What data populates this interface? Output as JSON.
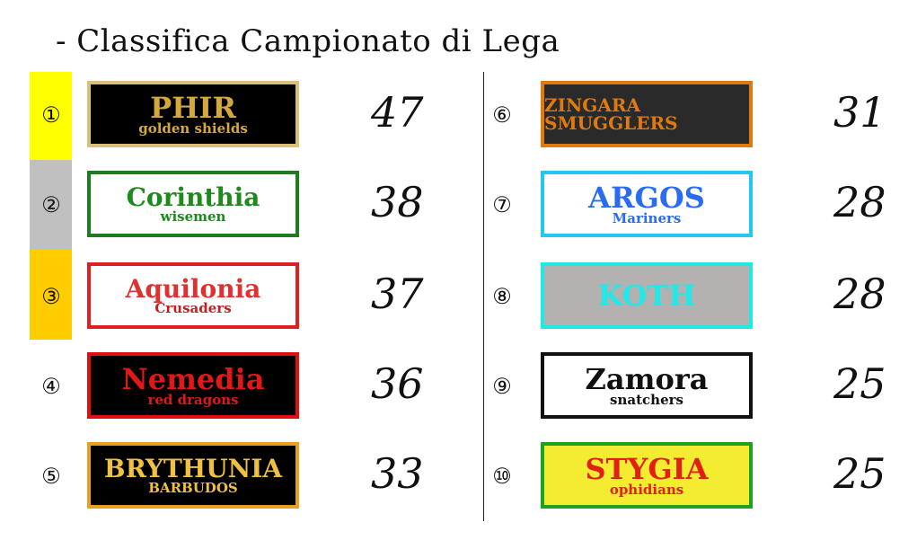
{
  "title": "- Classifica Campionato di Lega",
  "highlight_colors": [
    "#ffff00",
    "#c0c0c0",
    "#ffcc00"
  ],
  "teams": [
    {
      "rank": "①",
      "name": "PHIR",
      "sub": "golden shields",
      "score": "47",
      "bg": "#000000",
      "border": "#d9bf78",
      "fg": "#d4a93a",
      "fg2": "#d4a93a"
    },
    {
      "rank": "②",
      "name": "Corinthia",
      "sub": "wisemen",
      "score": "38",
      "bg": "#ffffff",
      "border": "#1e7b1e",
      "fg": "#1e8a1e",
      "fg2": "#1e8a1e"
    },
    {
      "rank": "③",
      "name": "Aquilonia",
      "sub": "Crusaders",
      "score": "37",
      "bg": "#ffffff",
      "border": "#e02020",
      "fg": "#e03030",
      "fg2": "#c02020"
    },
    {
      "rank": "④",
      "name": "Nemedia",
      "sub": "red dragons",
      "score": "36",
      "bg": "#000000",
      "border": "#e01010",
      "fg": "#e01818",
      "fg2": "#e01818"
    },
    {
      "rank": "⑤",
      "name": "BRYTHUNIA",
      "sub": "BARBUDOS",
      "score": "33",
      "bg": "#000000",
      "border": "#e8a020",
      "fg": "#f0c040",
      "fg2": "#f0c040"
    },
    {
      "rank": "⑥",
      "name": "ZINGARA SMUGGLERS",
      "sub": "",
      "score": "31",
      "bg": "#2a2a2a",
      "border": "#e07a10",
      "fg": "#e07a10",
      "fg2": "#e07a10"
    },
    {
      "rank": "⑦",
      "name": "ARGOS",
      "sub": "Mariners",
      "score": "28",
      "bg": "#ffffff",
      "border": "#22c8f0",
      "fg": "#2a6cf0",
      "fg2": "#2a6cf0"
    },
    {
      "rank": "⑧",
      "name": "KOTH",
      "sub": "",
      "score": "28",
      "bg": "#b3b0b0",
      "border": "#22e8e8",
      "fg": "#22e8e8",
      "fg2": "#22e8e8"
    },
    {
      "rank": "⑨",
      "name": "Zamora",
      "sub": "snatchers",
      "score": "25",
      "bg": "#ffffff",
      "border": "#111111",
      "fg": "#111111",
      "fg2": "#111111"
    },
    {
      "rank": "⑩",
      "name": "STYGIA",
      "sub": "ophidians",
      "score": "25",
      "bg": "#f4ec30",
      "border": "#20a020",
      "fg": "#e02010",
      "fg2": "#e02010"
    }
  ]
}
